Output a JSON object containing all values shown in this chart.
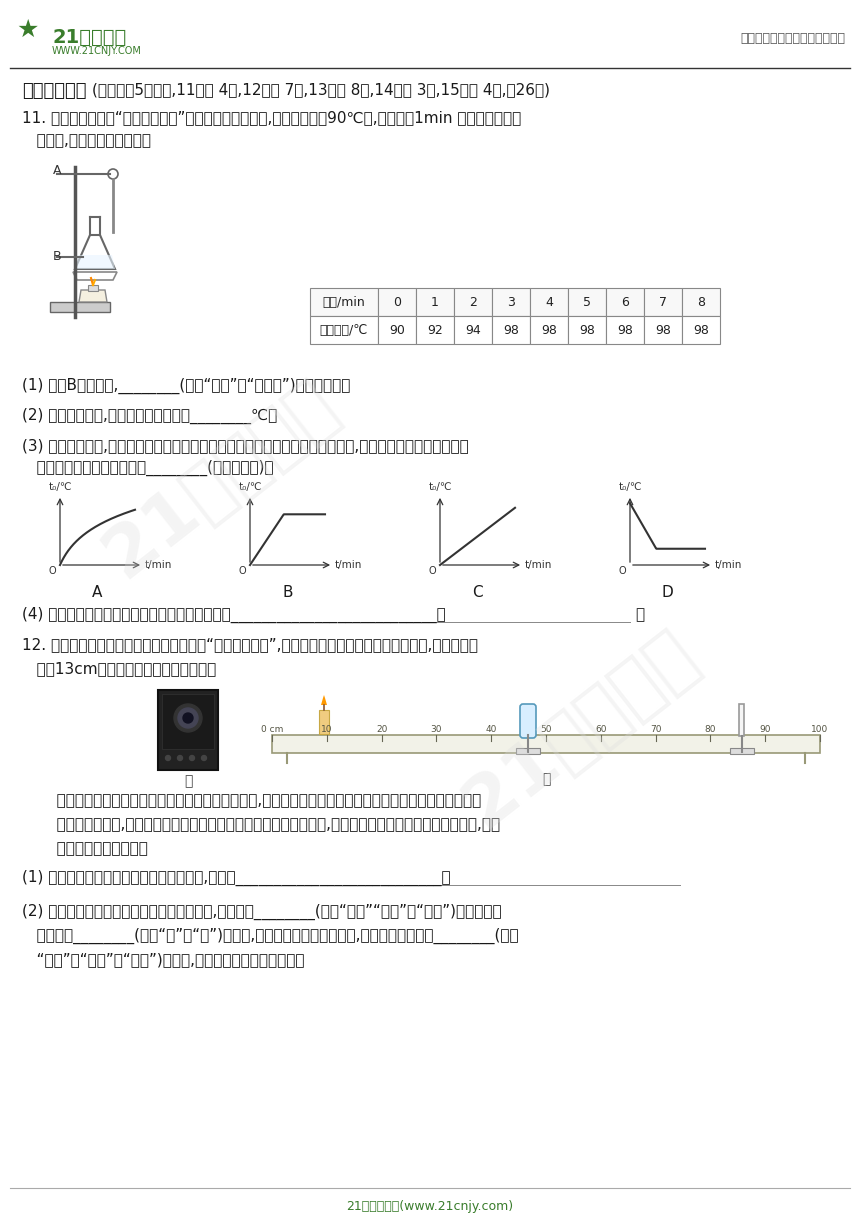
{
  "page_width": 8.6,
  "page_height": 12.16,
  "bg_color": "#ffffff",
  "header_logo_text": "21世纪教育",
  "header_logo_sub": "WWW.21CNJY.COM",
  "header_right": "中小学教育资源及组卷应用平台",
  "section_bold": "二、实验探究",
  "section_subtitle": "(本大题共5个小题,11小题 4分,12小题 7分,13小题 8分,14小题 3分,15小题 4分,全26分)",
  "q11_text1": "11. 小明和同学们做“探究水的沸腾”实验的装置如图所示,当水温上升到90℃后,他们每隔1min 记录一次温度计",
  "q11_text2": "   的示数,部分数据如表所示。",
  "table_headers": [
    "时间/min",
    "0",
    "1",
    "2",
    "3",
    "4",
    "5",
    "6",
    "7",
    "8"
  ],
  "table_row": [
    "水的温度/℃",
    "90",
    "92",
    "94",
    "98",
    "98",
    "98",
    "98",
    "98",
    "98"
  ],
  "q11_q1": "(1) 调节B的高度时,________(选填“需要”或“不需要”)点燃酒精灯。",
  "q11_q2": "(2) 分析数据可知,该状态下水的沸点为________℃。",
  "q11_q3": "(3) 在探究结束后,四位同学分别展示了自己所绘制的水的温度和时间的关系图像,其中能正确反映水沸腾过程",
  "q11_q3b": "   中温度随时间变化关系的是________(填字母代号)。",
  "q11_q4": "(4) 请你帮小明想出一种缩短加热时间的可行方案___________________________。",
  "graph_labels": [
    "A",
    "B",
    "C",
    "D"
  ],
  "q12_text1": "12. 太原市许多学校都安装了如图甲所示的“一键报警装置”,小明发现该装置的镜头相当于凸透镜,于是利用焦",
  "q12_text2": "   距为13cm的凸透镜来探究其成像规律。",
  "q12_desc1": "   首先他将蜡烛、凸透镜和光屏依次安装在光具座上,调节烛炎、凸透镜和光屏的高度；然后移动光屏到如图",
  "q12_desc2": "   乙所示的位置时,看到了清晰的像；接着保持蜡烛和光屏的位置不变,将凸透镜移到光具座上的另一位置时,光屏",
  "q12_desc3": "   上再次得到清晰的像。",
  "q12_q1": "(1) 调节图乙中烛炎、凸透镜和光屏的高度,目的是___________________________。",
  "q12_q2_a": "(2) 蜡烛、凸透镜和光屏在图乙所示的位置时,成倒立、________(选填“放大”“缩小”或“等大”)的实像。将",
  "q12_q2_b": "   凸透镜向________(选填“左”或“右”)移动时,光屏上再次得到清晰的像,此时的像是倒立、________(选填",
  "q12_q2_c": "   “放大”或“缩小”或“等大”)的实像,成像原理与报警装置相同。",
  "footer_text": "21世纪教育网(www.21cnjy.com)",
  "text_color": "#1a1a1a",
  "green_color": "#3a7d2c",
  "line_color": "#cccccc"
}
